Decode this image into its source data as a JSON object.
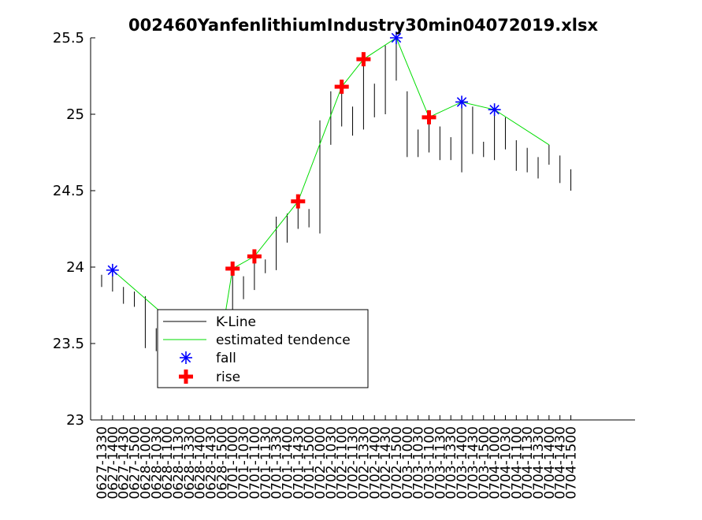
{
  "chart_data": {
    "type": "line",
    "title": "002460YanfenlithiumIndustry30min04072019.xlsx",
    "xlabel": "",
    "ylabel": "",
    "ylim": [
      23,
      25.5
    ],
    "yticks": [
      23,
      23.5,
      24,
      24.5,
      25,
      25.5
    ],
    "grid": false,
    "legend_position": "lower-left",
    "colors": {
      "kline": "#000000",
      "tendency": "#00dd00",
      "fall": "#0000ff",
      "rise": "#ff0000"
    },
    "categories": [
      "0627-1330",
      "0627-1400",
      "0627-1430",
      "0627-1500",
      "0628-1000",
      "0628-1030",
      "0628-1100",
      "0628-1130",
      "0628-1330",
      "0628-1400",
      "0628-1430",
      "0628-1500",
      "0701-1000",
      "0701-1030",
      "0701-1100",
      "0701-1130",
      "0701-1330",
      "0701-1400",
      "0701-1430",
      "0701-1500",
      "0702-1000",
      "0702-1030",
      "0702-1100",
      "0702-1130",
      "0702-1330",
      "0702-1400",
      "0702-1430",
      "0702-1500",
      "0703-1000",
      "0703-1030",
      "0703-1100",
      "0703-1130",
      "0703-1330",
      "0703-1400",
      "0703-1430",
      "0703-1500",
      "0704-1000",
      "0704-1030",
      "0704-1100",
      "0704-1130",
      "0704-1330",
      "0704-1400",
      "0704-1430",
      "0704-1500"
    ],
    "kline": {
      "high": [
        23.95,
        23.98,
        23.87,
        23.84,
        23.81,
        23.6,
        23.55,
        23.52,
        23.55,
        23.58,
        23.6,
        23.65,
        24.0,
        23.94,
        24.08,
        24.05,
        24.33,
        24.35,
        24.43,
        24.38,
        24.96,
        25.15,
        25.17,
        25.05,
        25.35,
        25.2,
        25.45,
        25.5,
        25.15,
        24.9,
        24.95,
        24.92,
        24.85,
        25.08,
        25.05,
        24.82,
        25.07,
        24.98,
        24.83,
        24.78,
        24.72,
        24.8,
        24.73,
        24.64
      ],
      "low": [
        23.87,
        23.84,
        23.76,
        23.74,
        23.47,
        23.45,
        23.42,
        23.44,
        23.46,
        23.48,
        23.5,
        23.52,
        23.6,
        23.79,
        23.85,
        23.96,
        23.98,
        24.16,
        24.25,
        24.26,
        24.22,
        24.8,
        24.92,
        24.86,
        24.9,
        24.98,
        25.0,
        25.22,
        24.72,
        24.72,
        24.75,
        24.7,
        24.7,
        24.62,
        24.74,
        24.72,
        24.7,
        24.77,
        24.63,
        24.62,
        24.58,
        24.67,
        24.55,
        24.5
      ]
    },
    "series": [
      {
        "name": "estimated tendence",
        "points": [
          [
            1,
            23.98
          ],
          [
            6,
            23.67
          ],
          [
            11,
            23.55
          ],
          [
            12,
            23.99
          ],
          [
            14,
            24.07
          ],
          [
            18,
            24.43
          ],
          [
            22,
            25.18
          ],
          [
            24,
            25.36
          ],
          [
            27,
            25.5
          ],
          [
            30,
            24.98
          ],
          [
            33,
            25.08
          ],
          [
            36,
            25.03
          ],
          [
            41,
            24.8
          ]
        ]
      },
      {
        "name": "fall",
        "marker": "asterisk",
        "points": [
          [
            1,
            23.98
          ],
          [
            27,
            25.5
          ],
          [
            33,
            25.08
          ],
          [
            36,
            25.03
          ]
        ]
      },
      {
        "name": "rise",
        "marker": "plus",
        "points": [
          [
            12,
            23.99
          ],
          [
            14,
            24.07
          ],
          [
            18,
            24.43
          ],
          [
            22,
            25.18
          ],
          [
            24,
            25.36
          ],
          [
            30,
            24.98
          ]
        ]
      }
    ],
    "legend": [
      "K-Line",
      "estimated tendence",
      "fall",
      "rise"
    ]
  }
}
